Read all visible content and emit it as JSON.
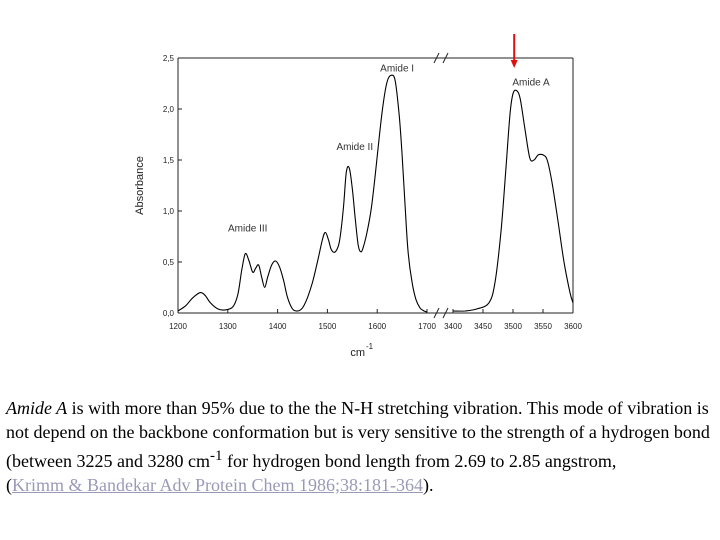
{
  "chart_data": {
    "type": "line",
    "ylabel": "Absorbance",
    "xlabel": "cm",
    "xlabel_superscript": "-1",
    "ylim": [
      0,
      2.5
    ],
    "yticks": [
      "0,0",
      "0,5",
      "1,0",
      "1,5",
      "2,0",
      "2,5"
    ],
    "x_segments": [
      {
        "range": [
          1200,
          1700
        ],
        "ticks": [
          "1200",
          "1300",
          "1400",
          "1500",
          "1600",
          "1700"
        ]
      },
      {
        "range": [
          3400,
          3600
        ],
        "ticks": [
          "3400",
          "3450",
          "3500",
          "3550",
          "3600"
        ]
      }
    ],
    "series": [
      {
        "segment": 0,
        "x": [
          1200,
          1215,
          1230,
          1245,
          1255,
          1265,
          1280,
          1295,
          1310,
          1320,
          1328,
          1335,
          1342,
          1350,
          1356,
          1362,
          1368,
          1374,
          1380,
          1388,
          1396,
          1404,
          1412,
          1420,
          1430,
          1440,
          1450,
          1460,
          1470,
          1480,
          1490,
          1496,
          1502,
          1508,
          1516,
          1524,
          1532,
          1538,
          1544,
          1550,
          1556,
          1562,
          1568,
          1574,
          1580,
          1588,
          1596,
          1604,
          1612,
          1620,
          1628,
          1636,
          1644,
          1650,
          1656,
          1662,
          1670,
          1678,
          1686,
          1694,
          1700
        ],
        "y": [
          0.02,
          0.07,
          0.15,
          0.2,
          0.17,
          0.1,
          0.04,
          0.03,
          0.06,
          0.18,
          0.42,
          0.58,
          0.52,
          0.4,
          0.44,
          0.47,
          0.35,
          0.25,
          0.35,
          0.47,
          0.51,
          0.45,
          0.32,
          0.15,
          0.04,
          0.02,
          0.05,
          0.15,
          0.3,
          0.5,
          0.72,
          0.79,
          0.72,
          0.62,
          0.6,
          0.7,
          1.02,
          1.38,
          1.42,
          1.22,
          0.92,
          0.66,
          0.6,
          0.68,
          0.8,
          1.02,
          1.35,
          1.72,
          2.05,
          2.27,
          2.33,
          2.28,
          1.95,
          1.55,
          1.05,
          0.6,
          0.3,
          0.13,
          0.05,
          0.02,
          0.01
        ]
      },
      {
        "segment": 1,
        "x": [
          3400,
          3420,
          3440,
          3460,
          3470,
          3480,
          3488,
          3495,
          3500,
          3506,
          3512,
          3520,
          3528,
          3535,
          3542,
          3550,
          3557,
          3565,
          3575,
          3585,
          3595,
          3600
        ],
        "y": [
          0.02,
          0.02,
          0.04,
          0.1,
          0.3,
          0.8,
          1.4,
          1.95,
          2.15,
          2.18,
          2.1,
          1.8,
          1.52,
          1.5,
          1.55,
          1.55,
          1.5,
          1.28,
          0.9,
          0.5,
          0.2,
          0.1
        ]
      }
    ],
    "annotations": [
      {
        "text": "Amide I",
        "x": 1640,
        "y": 2.37,
        "segment": 0
      },
      {
        "text": "Amide II",
        "x": 1555,
        "y": 1.6,
        "segment": 0
      },
      {
        "text": "Amide III",
        "x": 1340,
        "y": 0.8,
        "segment": 0
      },
      {
        "text": "Amide A",
        "x": 3530,
        "y": 2.23,
        "segment": 1
      }
    ],
    "arrow": {
      "x": 3502,
      "segment": 1,
      "color": "#e01010"
    },
    "line_color": "#000000"
  },
  "caption": {
    "emph": "Amide A",
    "text": " is with more than 95% due to the the N-H stretching vibration. This mode of vibration is not depend on the backbone conformation but is very sensitive to the strength of a hydrogen bond (between 3225 and 3280 cm",
    "sup": "-1",
    "text2": " for hydrogen bond length from 2.69 to 2.85 angstrom,",
    "open": "(",
    "ref": "Krimm & Bandekar Adv Protein Chem 1986;38:181-364",
    "close": ")."
  }
}
